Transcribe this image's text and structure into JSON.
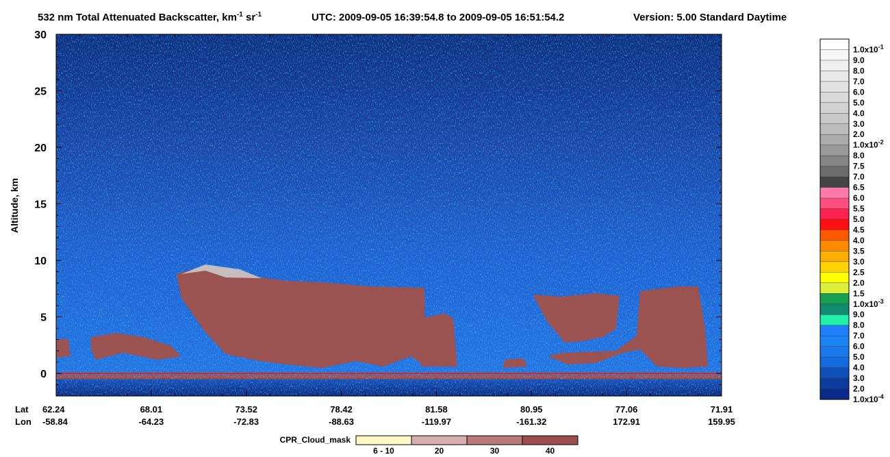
{
  "chart_data": {
    "type": "heatmap",
    "title": {
      "product": "532 nm Total Attenuated Backscatter, km",
      "units_sup1": "-1",
      "units_mid": " sr",
      "units_sup2": "-1",
      "utc": "UTC:  2009-09-05 16:39:54.8  to  2009-09-05 16:51:54.2",
      "version": "Version: 5.00  Standard  Daytime"
    },
    "ylabel": "Altitude, km",
    "ylim": [
      -2,
      30
    ],
    "yticks": [
      "30",
      "25",
      "20",
      "15",
      "10",
      "5",
      "0"
    ],
    "ytick_values": [
      30,
      25,
      20,
      15,
      10,
      5,
      0
    ],
    "xaxis": {
      "lat_label": "Lat",
      "lon_label": "Lon",
      "lat": [
        "62.24",
        "68.01",
        "73.52",
        "78.42",
        "81.58",
        "80.95",
        "77.06",
        "71.91"
      ],
      "lon": [
        "-58.84",
        "-64.23",
        "-72.83",
        "-88.63",
        "-119.97",
        "-161.32",
        "172.91",
        "159.95"
      ]
    },
    "colorbar": {
      "levels": [
        {
          "label": "1.0x10",
          "exp": "-1",
          "color": "#ffffff"
        },
        {
          "label": "9.0",
          "color": "#f7f7f7"
        },
        {
          "label": "8.0",
          "color": "#f0f0f0"
        },
        {
          "label": "7.0",
          "color": "#e9e9e9"
        },
        {
          "label": "6.0",
          "color": "#e2e2e2"
        },
        {
          "label": "5.0",
          "color": "#dadada"
        },
        {
          "label": "4.0",
          "color": "#d2d2d2"
        },
        {
          "label": "3.0",
          "color": "#c8c8c8"
        },
        {
          "label": "2.0",
          "color": "#bcbcbc"
        },
        {
          "label": "1.0x10",
          "exp": "-2",
          "color": "#ababab"
        },
        {
          "label": "8.0",
          "color": "#999999"
        },
        {
          "label": "7.5",
          "color": "#858585"
        },
        {
          "label": "7.0",
          "color": "#6c6c6c"
        },
        {
          "label": "6.5",
          "color": "#444444"
        },
        {
          "label": "6.0",
          "color": "#ff7aa8"
        },
        {
          "label": "5.5",
          "color": "#ff4f7f"
        },
        {
          "label": "5.0",
          "color": "#ff2250"
        },
        {
          "label": "4.5",
          "color": "#ff1010"
        },
        {
          "label": "4.0",
          "color": "#ff5a00"
        },
        {
          "label": "3.5",
          "color": "#ff8a00"
        },
        {
          "label": "3.0",
          "color": "#ffae00"
        },
        {
          "label": "2.5",
          "color": "#ffd200"
        },
        {
          "label": "2.0",
          "color": "#ffff00"
        },
        {
          "label": "1.5",
          "color": "#dcef3a"
        },
        {
          "label": "1.0x10",
          "exp": "-3",
          "color": "#16a050"
        },
        {
          "label": "9.0",
          "color": "#108a70"
        },
        {
          "label": "8.0",
          "color": "#20f0a8"
        },
        {
          "label": "7.0",
          "color": "#1e7fff"
        },
        {
          "label": "6.0",
          "color": "#1a84f5"
        },
        {
          "label": "5.0",
          "color": "#1878ec"
        },
        {
          "label": "4.0",
          "color": "#146be0"
        },
        {
          "label": "3.0",
          "color": "#0f4fb8"
        },
        {
          "label": "2.0",
          "color": "#0b3b9c"
        },
        {
          "label": "1.0x10",
          "exp": "-4",
          "color": "#0a2a8c"
        }
      ]
    },
    "cloud_mask": {
      "label": "CPR_Cloud_mask",
      "bins": [
        {
          "label": "6 - 10",
          "color": "#fdf7c4"
        },
        {
          "label": "20",
          "color": "#d6aeb0"
        },
        {
          "label": "30",
          "color": "#b87979"
        },
        {
          "label": "40",
          "color": "#9a4d4d"
        }
      ]
    },
    "colors": {
      "background_noise": "#0d2f7d",
      "surface_line": "#d81e1e",
      "cloud_fill": "#9a5350"
    }
  }
}
